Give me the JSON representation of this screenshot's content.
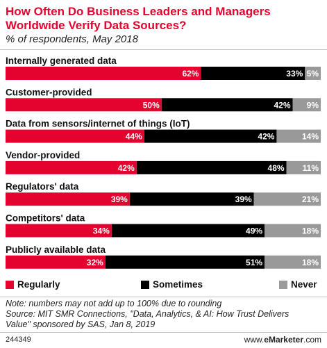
{
  "title_line1": "How Often Do Business Leaders and Managers",
  "title_line2": "Worldwide Verify Data Sources?",
  "subtitle": "% of respondents, May 2018",
  "colors": {
    "regularly": "#e4032e",
    "sometimes": "#000000",
    "never": "#999999",
    "title": "#e4032e"
  },
  "chart_data": {
    "type": "bar",
    "orientation": "horizontal",
    "stacked": true,
    "categories": [
      "Internally generated data",
      "Customer-provided",
      "Data from sensors/internet of things (IoT)",
      "Vendor-provided",
      "Regulators' data",
      "Competitors' data",
      "Publicly available data"
    ],
    "series": [
      {
        "name": "Regularly",
        "values": [
          62,
          50,
          44,
          42,
          39,
          34,
          32
        ],
        "labels": [
          "62%",
          "50%",
          "44%",
          "42%",
          "39%",
          "34%",
          "32%"
        ]
      },
      {
        "name": "Sometimes",
        "values": [
          33,
          42,
          42,
          48,
          39,
          49,
          51
        ],
        "labels": [
          "33%",
          "42%",
          "42%",
          "48%",
          "39%",
          "49%",
          "51%"
        ]
      },
      {
        "name": "Never",
        "values": [
          5,
          9,
          14,
          11,
          21,
          18,
          18
        ],
        "labels": [
          "5%",
          "9%",
          "14%",
          "11%",
          "21%",
          "18%",
          "18%"
        ]
      }
    ],
    "legend_position": "bottom"
  },
  "notes": [
    "Note: numbers may not add up to 100% due to rounding",
    "Source: MIT SMR Connections, \"Data, Analytics, & AI: How Trust Delivers",
    "Value\" sponsored by SAS, Jan 8, 2019"
  ],
  "footer": {
    "id": "244349",
    "brand_prefix": "www.",
    "brand_name": "eMarketer",
    "brand_suffix": ".com"
  }
}
